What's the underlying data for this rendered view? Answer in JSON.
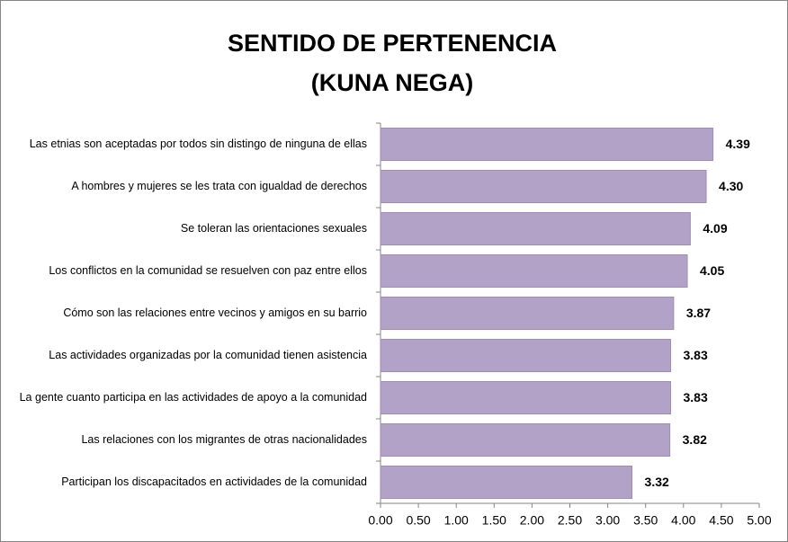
{
  "chart_data": {
    "type": "barh",
    "title": [
      "SENTIDO DE PERTENENCIA",
      "(KUNA NEGA)"
    ],
    "categories": [
      "Las etnias son aceptadas por todos sin distingo de ninguna de ellas",
      "A hombres y mujeres se les trata con igualdad de derechos",
      "Se toleran las orientaciones sexuales",
      "Los conflictos en la comunidad se resuelven con paz entre ellos",
      "Cómo son las relaciones entre vecinos y amigos en su barrio",
      "Las actividades organizadas por la comunidad tienen asistencia",
      "La gente cuanto participa en las actividades de apoyo a la comunidad",
      "Las relaciones con los migrantes de otras nacionalidades",
      "Participan los discapacitados en actividades de la comunidad"
    ],
    "values": [
      4.39,
      4.3,
      4.09,
      4.05,
      3.87,
      3.83,
      3.83,
      3.82,
      3.32
    ],
    "value_labels": [
      "4.39",
      "4.30",
      "4.09",
      "4.05",
      "3.87",
      "3.83",
      "3.83",
      "3.82",
      "3.32"
    ],
    "color": "#b3a2c7",
    "xlim": [
      0,
      5
    ],
    "xticks": [
      {
        "value": 0,
        "label": "0.00"
      },
      {
        "value": 0.5,
        "label": "0.50"
      },
      {
        "value": 1,
        "label": "1.00"
      },
      {
        "value": 1.5,
        "label": "1.50"
      },
      {
        "value": 2,
        "label": "2.00"
      },
      {
        "value": 2.5,
        "label": "2.50"
      },
      {
        "value": 3,
        "label": "3.00"
      },
      {
        "value": 3.5,
        "label": "3.50"
      },
      {
        "value": 4,
        "label": "4.00"
      },
      {
        "value": 4.5,
        "label": "4.50"
      },
      {
        "value": 5,
        "label": "5.00"
      }
    ],
    "grid": false
  }
}
